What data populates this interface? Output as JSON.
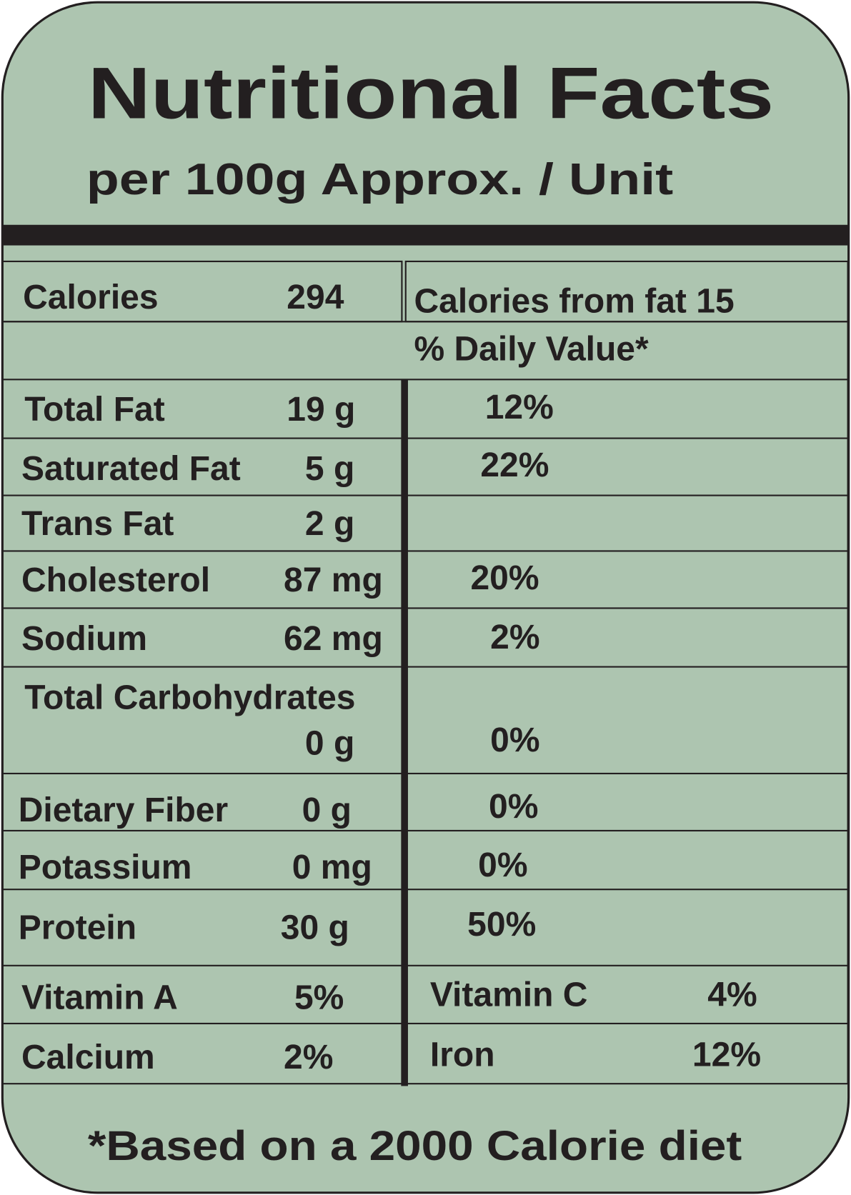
{
  "header": {
    "title": "Nutritional Facts",
    "subtitle": "per 100g Approx. / Unit"
  },
  "calories": {
    "label": "Calories",
    "value": "294",
    "from_fat": "Calories from fat 15"
  },
  "daily_value_header": "% Daily Value*",
  "nutrients": [
    {
      "name": "Total Fat",
      "amount": "19 g",
      "daily": "12%"
    },
    {
      "name": "Saturated Fat",
      "amount": "5 g",
      "daily": "22%"
    },
    {
      "name": "Trans Fat",
      "amount": "2 g"
    },
    {
      "name": "Cholesterol",
      "amount": "87 mg",
      "daily": "20%"
    },
    {
      "name": "Sodium",
      "amount": "62 mg",
      "daily": "2%"
    },
    {
      "name": "Total Carbohydrates",
      "amount": "0 g",
      "daily": "0%"
    },
    {
      "name": "Dietary Fiber",
      "amount": "0 g",
      "daily": "0%"
    },
    {
      "name": "Potassium",
      "amount": "0  mg",
      "daily": "0%"
    },
    {
      "name": "Protein",
      "amount": "30 g",
      "daily": "50%"
    }
  ],
  "vitamins": [
    [
      {
        "name": "Vitamin A",
        "value": "5%"
      },
      {
        "name": "Vitamin C",
        "value": "4%"
      }
    ],
    [
      {
        "name": "Calcium",
        "value": "2%"
      },
      {
        "name": "Iron",
        "value": "12%"
      }
    ]
  ],
  "footer": "*Based on a 2000 Calorie diet"
}
